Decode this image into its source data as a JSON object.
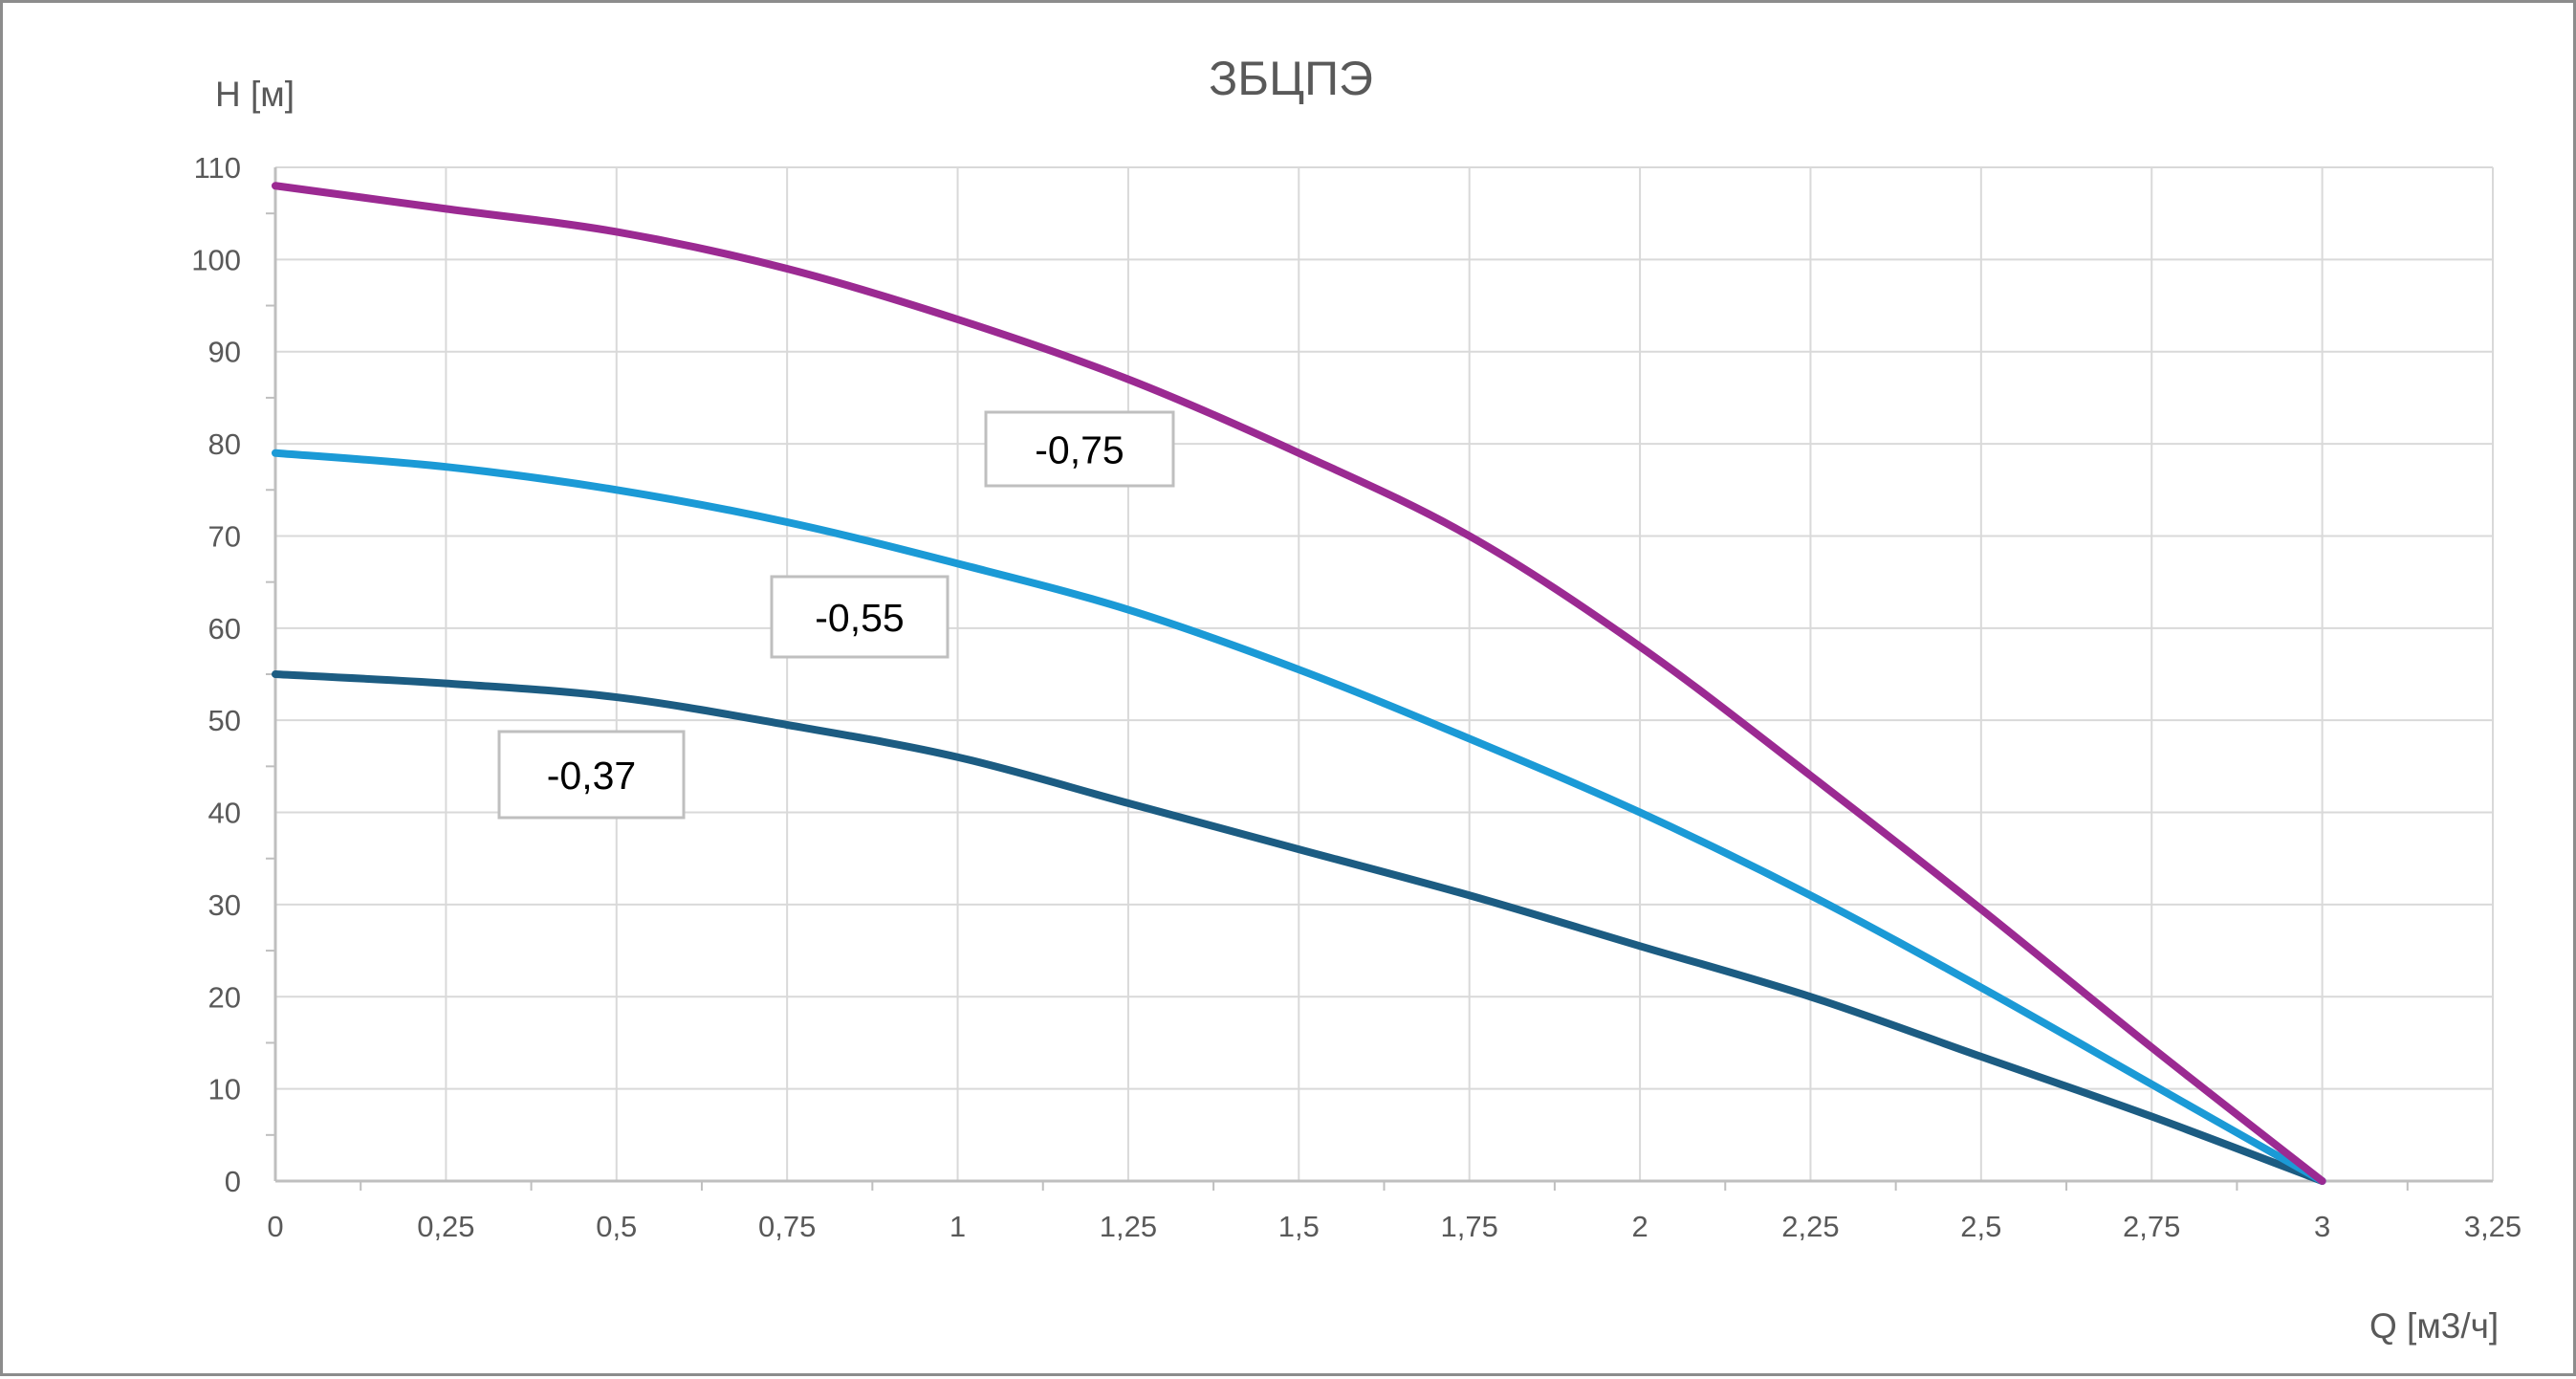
{
  "chart_data": {
    "type": "line",
    "title": "ЗБЦПЭ",
    "xlabel": "Q [м3/ч]",
    "ylabel": "H [м]",
    "xlim": [
      0,
      3.25
    ],
    "ylim": [
      0,
      110
    ],
    "x_ticks": [
      "0",
      "0,25",
      "0,5",
      "0,75",
      "1",
      "1,25",
      "1,5",
      "1,75",
      "2",
      "2,25",
      "2,5",
      "2,75",
      "3",
      "3,25"
    ],
    "y_ticks": [
      "0",
      "10",
      "20",
      "30",
      "40",
      "50",
      "60",
      "70",
      "80",
      "90",
      "100",
      "110"
    ],
    "grid": true,
    "legend": "none",
    "series": [
      {
        "name": "-0,75",
        "color": "#9b2a92",
        "x": [
          0,
          0.25,
          0.5,
          0.75,
          1,
          1.25,
          1.5,
          1.75,
          2,
          2.25,
          2.5,
          2.75,
          3
        ],
        "y": [
          108,
          105.5,
          103,
          99,
          93.5,
          87,
          79,
          70,
          58,
          44,
          29.5,
          14.5,
          0
        ]
      },
      {
        "name": "-0,55",
        "color": "#1b9ad6",
        "x": [
          0,
          0.25,
          0.5,
          0.75,
          1,
          1.25,
          1.5,
          1.75,
          2,
          2.25,
          2.5,
          2.75,
          3
        ],
        "y": [
          79,
          77.5,
          75,
          71.5,
          67,
          62,
          55.5,
          48,
          40,
          31,
          21,
          10.5,
          0
        ]
      },
      {
        "name": "-0,37",
        "color": "#1c5c82",
        "x": [
          0,
          0.25,
          0.5,
          0.75,
          1,
          1.25,
          1.5,
          1.75,
          2,
          2.25,
          2.5,
          2.75,
          3
        ],
        "y": [
          55,
          54,
          52.5,
          49.5,
          46,
          41,
          36,
          31,
          25.5,
          20,
          13.5,
          7,
          0
        ]
      }
    ],
    "annotations": [
      {
        "text": "-0,75",
        "series": "-0,75"
      },
      {
        "text": "-0,55",
        "series": "-0,55"
      },
      {
        "text": "-0,37",
        "series": "-0,37"
      }
    ]
  }
}
